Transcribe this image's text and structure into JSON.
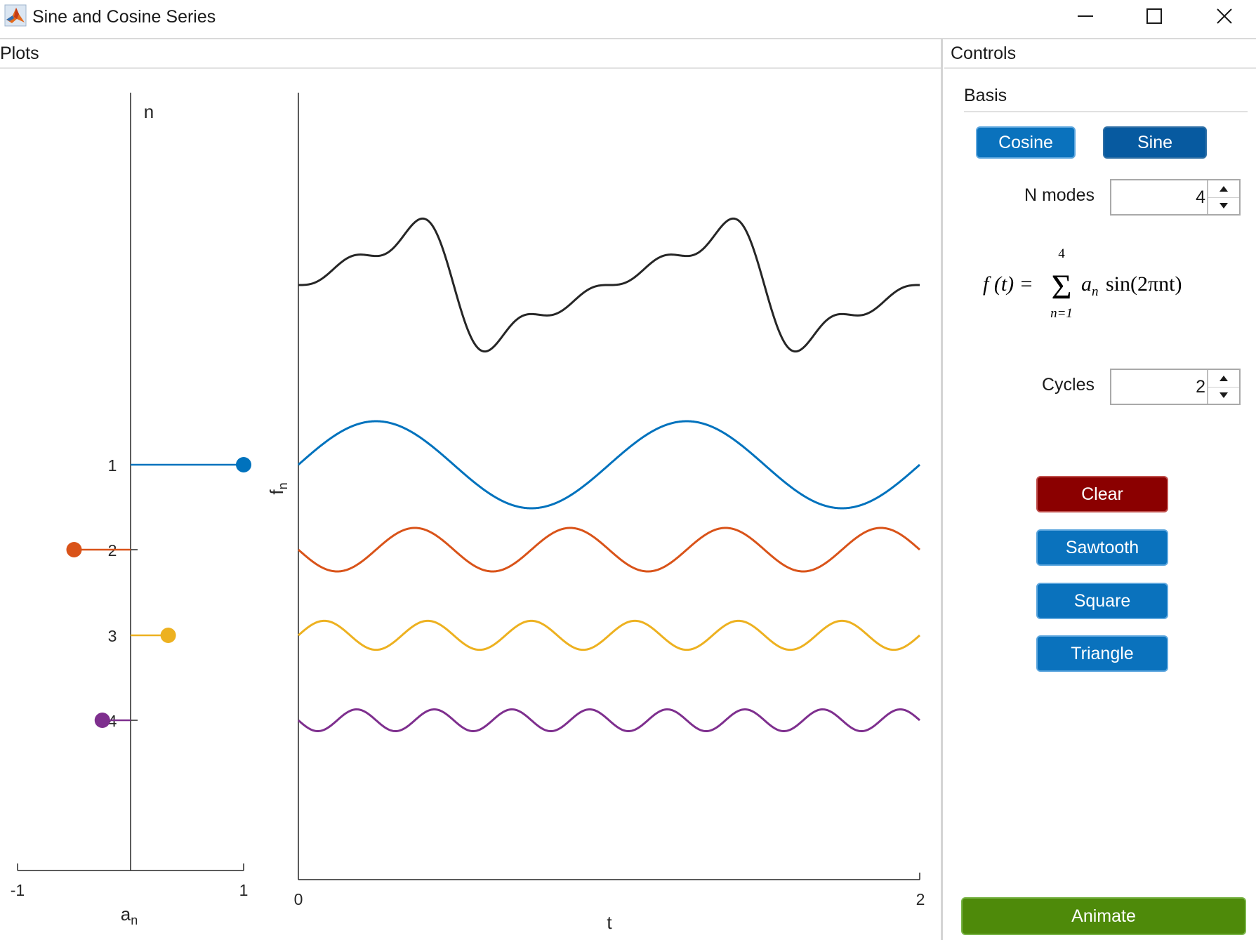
{
  "window": {
    "title": "Sine and Cosine Series"
  },
  "plots_panel": {
    "title": "Plots"
  },
  "controls_panel": {
    "title": "Controls",
    "basis": {
      "title": "Basis",
      "cosine_label": "Cosine",
      "sine_label": "Sine",
      "selected": "Sine"
    },
    "n_modes": {
      "label": "N modes",
      "value": "4"
    },
    "formula": {
      "lhs": "f (t) =",
      "sum_upper": "4",
      "sum_lower": "n=1",
      "a": "a",
      "sub": "n",
      "term": "sin(2πnt)"
    },
    "cycles": {
      "label": "Cycles",
      "value": "2"
    },
    "buttons": {
      "clear": "Clear",
      "sawtooth": "Sawtooth",
      "square": "Square",
      "triangle": "Triangle",
      "animate": "Animate"
    }
  },
  "colors": {
    "blue": "#0072BD",
    "orange": "#D95319",
    "yellow": "#EDB120",
    "purple": "#7E2F8E",
    "sum": "#262626",
    "clear": "#8B0000",
    "animate": "#4E8A0A"
  },
  "chart_data": [
    {
      "type": "stem",
      "orientation": "horizontal",
      "xlabel": "a",
      "xlabel_sub": "n",
      "ylabel": "n",
      "xlim": [
        -1,
        1
      ],
      "xticks": [
        "-1",
        "1"
      ],
      "categories": [
        "1",
        "2",
        "3",
        "4"
      ],
      "values": [
        1.0,
        -0.5,
        0.333,
        -0.25
      ],
      "colors": [
        "#0072BD",
        "#D95319",
        "#EDB120",
        "#7E2F8E"
      ]
    },
    {
      "type": "line",
      "xlabel": "t",
      "ylabel": "f",
      "ylabel_sub": "n",
      "xlim": [
        0,
        2
      ],
      "xticks": [
        "0",
        "2"
      ],
      "basis": "sine",
      "modes": [
        {
          "n": 1,
          "amplitude": 1.0,
          "color": "#0072BD"
        },
        {
          "n": 2,
          "amplitude": -0.5,
          "color": "#D95319"
        },
        {
          "n": 3,
          "amplitude": 0.333,
          "color": "#EDB120"
        },
        {
          "n": 4,
          "amplitude": -0.25,
          "color": "#7E2F8E"
        }
      ],
      "sum_color": "#262626"
    }
  ]
}
